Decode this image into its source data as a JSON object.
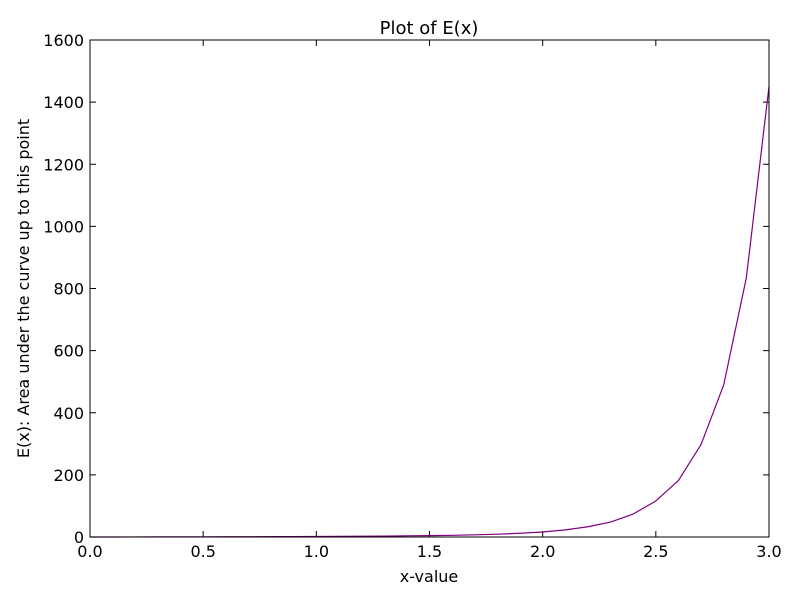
{
  "chart_data": {
    "type": "line",
    "title": "Plot of E(x)",
    "xlabel": "x-value",
    "ylabel": "E(x): Area under the curve up to this point",
    "xlim": [
      0.0,
      3.0
    ],
    "ylim": [
      0,
      1600
    ],
    "xticks": [
      "0.0",
      "0.5",
      "1.0",
      "1.5",
      "2.0",
      "2.5",
      "3.0"
    ],
    "yticks": [
      "0",
      "200",
      "400",
      "600",
      "800",
      "1000",
      "1200",
      "1400",
      "1600"
    ],
    "grid": false,
    "series": [
      {
        "color": "#800080",
        "x": [
          0.0,
          0.1,
          0.2,
          0.3,
          0.4,
          0.5,
          0.6,
          0.7,
          0.8,
          0.9,
          1.0,
          1.1,
          1.2,
          1.3,
          1.4,
          1.5,
          1.6,
          1.7,
          1.8,
          1.9,
          2.0,
          2.1,
          2.2,
          2.3,
          2.4,
          2.5,
          2.6,
          2.7,
          2.8,
          2.9,
          3.0
        ],
        "y": [
          0,
          0.1,
          0.2,
          0.3,
          0.4,
          0.5,
          0.7,
          0.9,
          1.1,
          1.4,
          1.7,
          2.0,
          2.5,
          3.0,
          3.8,
          4.5,
          5.5,
          7,
          9,
          12,
          16,
          23,
          33,
          48,
          74,
          116,
          182,
          298,
          490,
          835,
          1450
        ]
      }
    ]
  }
}
